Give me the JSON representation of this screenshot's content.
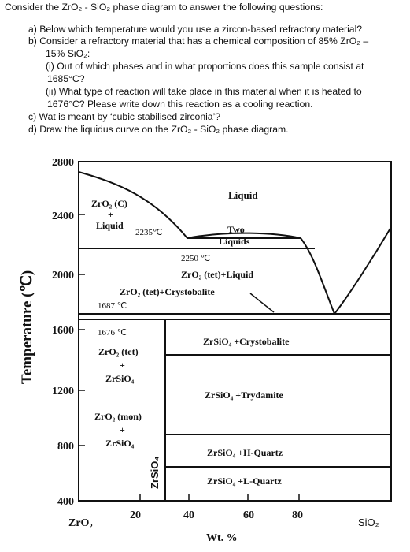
{
  "question": {
    "intro": "Consider the ZrO₂ - SiO₂ phase diagram to answer the following questions:",
    "a": "a)  Below which temperature would you use a zircon-based refractory material?",
    "b_line1": "b)  Consider a refractory material that has a chemical composition of 85% ZrO₂ –",
    "b_line2": "15% SiO₂:",
    "b_i_line1": "(i)  Out of which phases and in what proportions does this sample consist at",
    "b_i_line2": "1685°C?",
    "b_ii_line1": "(ii)  What type of reaction will take place in this material when it is heated to",
    "b_ii_line2": "1676°C? Please write down this reaction as a cooling reaction.",
    "c": "c)  Wat is meant by ‘cubic stabilised zirconia’?",
    "d": "d)  Draw the liquidus curve on the ZrO₂ - SiO₂ phase diagram."
  },
  "chart_data": {
    "type": "phase-diagram",
    "ylabel": "Temperature (℃)",
    "xlabel": "Wt. %",
    "left_component": "ZrO₂",
    "right_component": "SiO₂",
    "xlim": [
      0,
      100
    ],
    "ylim": [
      400,
      2800
    ],
    "x_ticks": [
      "20",
      "40",
      "60",
      "80"
    ],
    "y_ticks": [
      "2800",
      "2400",
      "2000",
      "1600",
      "1200",
      "800",
      "400"
    ],
    "isotherms": [
      {
        "temperature": 2250,
        "label": "2250 ℃"
      },
      {
        "temperature": 1687,
        "label": "1687 ℃"
      },
      {
        "temperature": 1676,
        "label": "1676 ℃"
      }
    ],
    "invariant_points": [
      {
        "label": "2235℃"
      }
    ],
    "compound": {
      "name": "ZrSiO₄",
      "wt_percent_SiO2": 33
    },
    "regions": [
      {
        "label": "Liquid"
      },
      {
        "label_line1": "ZrO₂ (C)",
        "label_line2": "+",
        "label_line3": "Liquid"
      },
      {
        "label_line1": "Two",
        "label_line2": "Liquids"
      },
      {
        "label": "ZrO₂ (tet)+Liquid"
      },
      {
        "label": "ZrO₂ (tet)+Crystobalite"
      },
      {
        "label": "ZrSiO₄ +Crystobalite"
      },
      {
        "label_line1": "ZrO₂ (tet)",
        "label_line2": "+",
        "label_line3": "ZrSiO₄"
      },
      {
        "label": "ZrSiO₄ +Trydamite"
      },
      {
        "label_line1": "ZrO₂ (mon)",
        "label_line2": "+",
        "label_line3": "ZrSiO₄"
      },
      {
        "label": "ZrSiO₄ +H-Quartz"
      },
      {
        "label": "ZrSiO₄ +L-Quartz"
      }
    ]
  }
}
